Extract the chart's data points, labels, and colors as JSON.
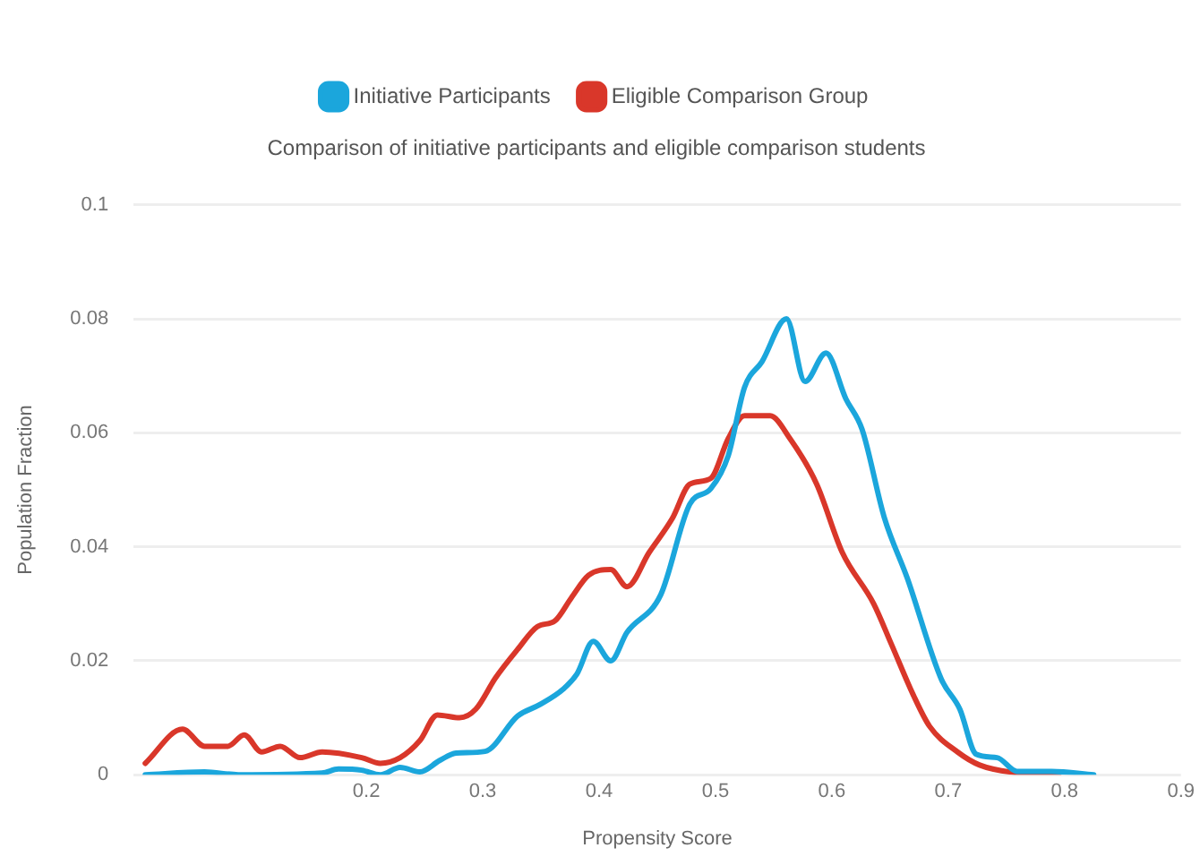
{
  "chart_data": {
    "type": "line",
    "title": "Comparison of initiative participants and eligible comparison students",
    "xlabel": "Propensity Score",
    "ylabel": "Population Fraction",
    "xlim": [
      0,
      0.9
    ],
    "xticks": [
      0.2,
      0.3,
      0.4,
      0.5,
      0.6,
      0.7,
      0.8,
      0.9
    ],
    "ylim": [
      0,
      0.1
    ],
    "yticks": [
      0,
      0.02,
      0.04,
      0.06,
      0.08,
      0.1
    ],
    "grid": "y",
    "legend": "top",
    "marker": "none",
    "line_style": "solid",
    "series": [
      {
        "name": "Initiative Participants",
        "color": "#1ba6dc",
        "x": [
          0.01,
          0.061,
          0.09,
          0.162,
          0.176,
          0.196,
          0.212,
          0.229,
          0.246,
          0.263,
          0.277,
          0.302,
          0.33,
          0.349,
          0.369,
          0.381,
          0.395,
          0.41,
          0.424,
          0.453,
          0.478,
          0.496,
          0.511,
          0.525,
          0.54,
          0.561,
          0.577,
          0.595,
          0.612,
          0.626,
          0.645,
          0.665,
          0.694,
          0.71,
          0.724,
          0.742,
          0.759,
          0.789,
          0.825
        ],
        "values": [
          0,
          0.0005,
          0,
          0.0003,
          0.001,
          0.0008,
          0,
          0.0013,
          0.0005,
          0.0025,
          0.0038,
          0.0041,
          0.0103,
          0.0123,
          0.015,
          0.0177,
          0.0234,
          0.02,
          0.025,
          0.0316,
          0.0475,
          0.0502,
          0.056,
          0.068,
          0.0725,
          0.08,
          0.069,
          0.074,
          0.066,
          0.0606,
          0.0452,
          0.0344,
          0.0168,
          0.0115,
          0.0036,
          0.003,
          0.0006,
          0.0006,
          0
        ]
      },
      {
        "name": "Eligible Comparison Group",
        "color": "#d9372a",
        "x": [
          0.01,
          0.042,
          0.061,
          0.081,
          0.095,
          0.11,
          0.126,
          0.143,
          0.162,
          0.196,
          0.212,
          0.229,
          0.246,
          0.261,
          0.28,
          0.294,
          0.311,
          0.33,
          0.347,
          0.362,
          0.376,
          0.391,
          0.41,
          0.424,
          0.443,
          0.463,
          0.478,
          0.496,
          0.511,
          0.525,
          0.547,
          0.564,
          0.587,
          0.609,
          0.636,
          0.651,
          0.67,
          0.684,
          0.708,
          0.727,
          0.756,
          0.795
        ],
        "values": [
          0.002,
          0.008,
          0.005,
          0.005,
          0.007,
          0.004,
          0.005,
          0.003,
          0.004,
          0.003,
          0.002,
          0.003,
          0.006,
          0.0105,
          0.01,
          0.0115,
          0.017,
          0.022,
          0.026,
          0.027,
          0.031,
          0.035,
          0.036,
          0.033,
          0.039,
          0.045,
          0.051,
          0.052,
          0.059,
          0.063,
          0.063,
          0.059,
          0.051,
          0.039,
          0.03,
          0.023,
          0.014,
          0.0085,
          0.004,
          0.0017,
          0.0004,
          0
        ]
      }
    ]
  }
}
